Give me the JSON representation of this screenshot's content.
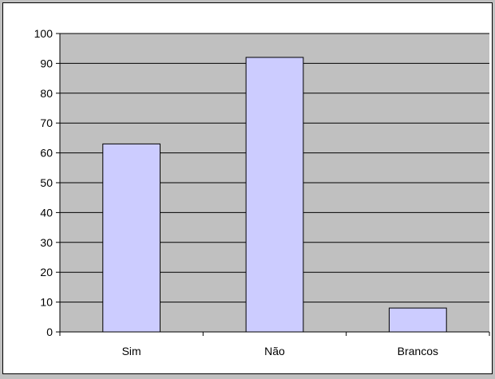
{
  "chart_data": {
    "type": "bar",
    "categories": [
      "Sim",
      "Não",
      "Brancos"
    ],
    "values": [
      63,
      92,
      8
    ],
    "title": "",
    "xlabel": "",
    "ylabel": "",
    "ylim": [
      0,
      100
    ],
    "yticks": [
      0,
      10,
      20,
      30,
      40,
      50,
      60,
      70,
      80,
      90,
      100
    ],
    "grid": true,
    "legend": "none",
    "colors": {
      "plot_background": "#c0c0c0",
      "bar_fill": "#ccccff",
      "bar_stroke": "#000000",
      "gridline": "#000000"
    }
  }
}
